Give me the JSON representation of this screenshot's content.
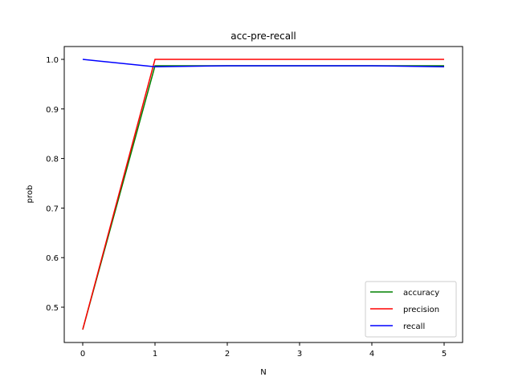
{
  "chart_data": {
    "type": "line",
    "title": "acc-pre-recall",
    "xlabel": "N",
    "ylabel": "prob",
    "x": [
      0,
      1,
      2,
      3,
      4,
      5
    ],
    "xticks": [
      "0",
      "1",
      "2",
      "3",
      "4",
      "5"
    ],
    "yticks": [
      "0.5",
      "0.6",
      "0.7",
      "0.8",
      "0.9",
      "1.0"
    ],
    "xlim": [
      -0.25,
      5.25
    ],
    "ylim": [
      0.427,
      1.027
    ],
    "grid": false,
    "legend_position": "lower right",
    "series": [
      {
        "name": "accuracy",
        "color": "#008000",
        "values": [
          0.455,
          0.987,
          0.987,
          0.987,
          0.987,
          0.987
        ]
      },
      {
        "name": "precision",
        "color": "#ff0000",
        "values": [
          0.455,
          1.0,
          1.0,
          1.0,
          1.0,
          1.0
        ]
      },
      {
        "name": "recall",
        "color": "#0000ff",
        "values": [
          1.0,
          0.985,
          0.987,
          0.987,
          0.987,
          0.985
        ]
      }
    ]
  }
}
